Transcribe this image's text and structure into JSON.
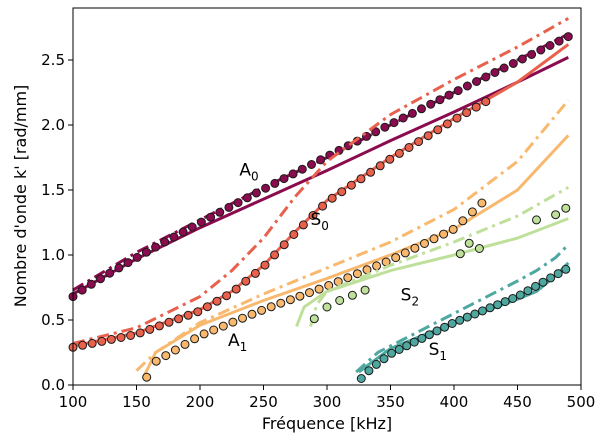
{
  "chart_data": {
    "type": "line",
    "xlabel": "Fréquence [kHz]",
    "ylabel": "Nombre d'onde k' [rad/mm]",
    "xlim": [
      100,
      500
    ],
    "ylim": [
      0,
      2.9
    ],
    "xticks": [
      "100",
      "150",
      "200",
      "250",
      "300",
      "350",
      "400",
      "450",
      "500"
    ],
    "yticks": [
      "0.0",
      "0.5",
      "1.0",
      "1.5",
      "2.0",
      "2.5"
    ],
    "grid": false,
    "mode_labels": [
      {
        "base": "A",
        "sub": "0",
        "x": 231,
        "y": 1.61
      },
      {
        "base": "S",
        "sub": "0",
        "x": 287,
        "y": 1.23
      },
      {
        "base": "S",
        "sub": "2",
        "x": 358,
        "y": 0.65
      },
      {
        "base": "A",
        "sub": "1",
        "x": 222,
        "y": 0.3
      },
      {
        "base": "S",
        "sub": "1",
        "x": 380,
        "y": 0.23
      }
    ],
    "series": [
      {
        "mode": "A0",
        "color": "#8b0c4e",
        "solid": [
          [
            100,
            0.7
          ],
          [
            150,
            0.97
          ],
          [
            200,
            1.21
          ],
          [
            250,
            1.43
          ],
          [
            300,
            1.65
          ],
          [
            350,
            1.88
          ],
          [
            400,
            2.1
          ],
          [
            450,
            2.33
          ],
          [
            490,
            2.52
          ]
        ],
        "dashdot": [
          [
            100,
            0.73
          ],
          [
            150,
            1.02
          ],
          [
            200,
            1.27
          ],
          [
            250,
            1.52
          ],
          [
            300,
            1.75
          ],
          [
            350,
            2.0
          ],
          [
            400,
            2.25
          ],
          [
            450,
            2.5
          ],
          [
            490,
            2.7
          ]
        ],
        "points_x": [
          100,
          490
        ],
        "points_y": [
          0.68,
          2.68
        ],
        "points_n": 55,
        "points_exp": 1.08
      },
      {
        "mode": "S0",
        "color": "#e8614d",
        "solid": [
          [
            100,
            0.3
          ],
          [
            150,
            0.4
          ],
          [
            200,
            0.58
          ],
          [
            225,
            0.72
          ],
          [
            250,
            0.92
          ],
          [
            275,
            1.18
          ],
          [
            300,
            1.42
          ],
          [
            350,
            1.75
          ],
          [
            400,
            2.05
          ],
          [
            450,
            2.33
          ],
          [
            490,
            2.62
          ]
        ],
        "dashdot": [
          [
            100,
            0.32
          ],
          [
            150,
            0.44
          ],
          [
            200,
            0.68
          ],
          [
            225,
            0.88
          ],
          [
            250,
            1.13
          ],
          [
            275,
            1.45
          ],
          [
            300,
            1.72
          ],
          [
            350,
            2.08
          ],
          [
            400,
            2.35
          ],
          [
            450,
            2.6
          ],
          [
            490,
            2.82
          ]
        ],
        "points_x": [
          100,
          425
        ],
        "points_y": [
          0.3,
          2.22
        ],
        "points_n": 44,
        "points_curve": "s0"
      },
      {
        "mode": "A1",
        "color": "#f8b86e",
        "solid": [
          [
            155,
            0.05
          ],
          [
            165,
            0.25
          ],
          [
            200,
            0.46
          ],
          [
            250,
            0.65
          ],
          [
            300,
            0.82
          ],
          [
            350,
            1.0
          ],
          [
            400,
            1.2
          ],
          [
            450,
            1.5
          ],
          [
            490,
            1.92
          ]
        ],
        "dashdot": [
          [
            150,
            0.11
          ],
          [
            165,
            0.25
          ],
          [
            200,
            0.48
          ],
          [
            250,
            0.7
          ],
          [
            300,
            0.9
          ],
          [
            350,
            1.1
          ],
          [
            400,
            1.35
          ],
          [
            450,
            1.72
          ],
          [
            490,
            2.19
          ]
        ],
        "points_x": [
          158,
          422
        ],
        "points_y": [
          0.06,
          1.4
        ],
        "points_n": 36,
        "points_curve": "a1"
      },
      {
        "mode": "S2",
        "color": "#bfe09a",
        "solid": [
          [
            276,
            0.45
          ],
          [
            282,
            0.6
          ],
          [
            300,
            0.72
          ],
          [
            350,
            0.88
          ],
          [
            400,
            1.0
          ],
          [
            450,
            1.13
          ],
          [
            490,
            1.28
          ]
        ],
        "dashdot": [
          [
            287,
            0.45
          ],
          [
            292,
            0.62
          ],
          [
            300,
            0.72
          ],
          [
            350,
            0.92
          ],
          [
            400,
            1.1
          ],
          [
            450,
            1.3
          ],
          [
            490,
            1.52
          ]
        ],
        "points": [
          [
            290,
            0.51
          ],
          [
            300,
            0.6
          ],
          [
            310,
            0.65
          ],
          [
            320,
            0.69
          ],
          [
            330,
            0.73
          ],
          [
            405,
            1.01
          ],
          [
            412,
            1.09
          ],
          [
            420,
            1.05
          ],
          [
            465,
            1.27
          ],
          [
            480,
            1.31
          ],
          [
            488,
            1.36
          ]
        ]
      },
      {
        "mode": "S1",
        "color": "#4ea8a0",
        "solid": [
          [
            325,
            0.1
          ],
          [
            350,
            0.28
          ],
          [
            400,
            0.48
          ],
          [
            450,
            0.66
          ],
          [
            465,
            0.72
          ],
          [
            480,
            0.84
          ],
          [
            490,
            0.94
          ]
        ],
        "dashdot": [
          [
            323,
            0.1
          ],
          [
            340,
            0.25
          ],
          [
            400,
            0.55
          ],
          [
            450,
            0.8
          ],
          [
            465,
            0.88
          ],
          [
            480,
            0.98
          ],
          [
            490,
            1.08
          ]
        ],
        "points_x": [
          327,
          488
        ],
        "points_y": [
          0.05,
          0.89
        ],
        "points_n": 28,
        "points_curve": "s1"
      }
    ]
  }
}
